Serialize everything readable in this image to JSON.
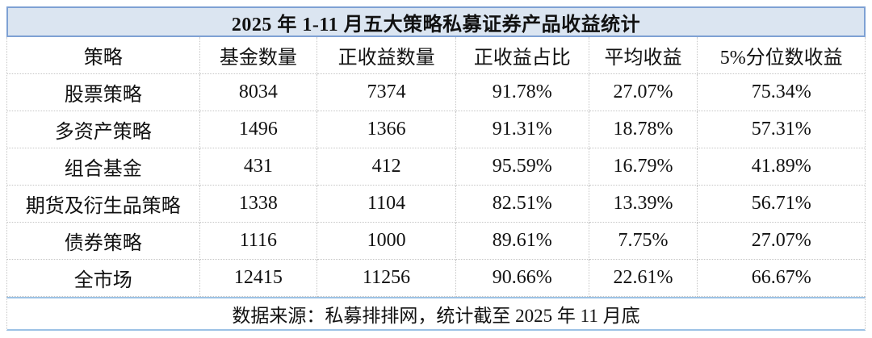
{
  "chart_data": {
    "type": "table",
    "title": "2025 年 1-11 月五大策略私募证券产品收益统计",
    "columns": [
      "策略",
      "基金数量",
      "正收益数量",
      "正收益占比",
      "平均收益",
      "5%分位数收益"
    ],
    "rows": [
      [
        "股票策略",
        "8034",
        "7374",
        "91.78%",
        "27.07%",
        "75.34%"
      ],
      [
        "多资产策略",
        "1496",
        "1366",
        "91.31%",
        "18.78%",
        "57.31%"
      ],
      [
        "组合基金",
        "431",
        "412",
        "95.59%",
        "16.79%",
        "41.89%"
      ],
      [
        "期货及衍生品策略",
        "1338",
        "1104",
        "82.51%",
        "13.39%",
        "56.71%"
      ],
      [
        "债券策略",
        "1116",
        "1000",
        "89.61%",
        "7.75%",
        "27.07%"
      ],
      [
        "全市场",
        "12415",
        "11256",
        "90.66%",
        "22.61%",
        "66.67%"
      ]
    ],
    "source_note": "数据来源：私募排排网，统计截至 2025 年 11 月底",
    "layout": {
      "grid": "dotted",
      "header_position": "top",
      "alignment": "center"
    }
  },
  "colors": {
    "title_bg": "#dbe5f1",
    "title_border": "#7ea1d4",
    "footer_border": "#9cc2e5",
    "grid_line": "#c6c6c6"
  }
}
